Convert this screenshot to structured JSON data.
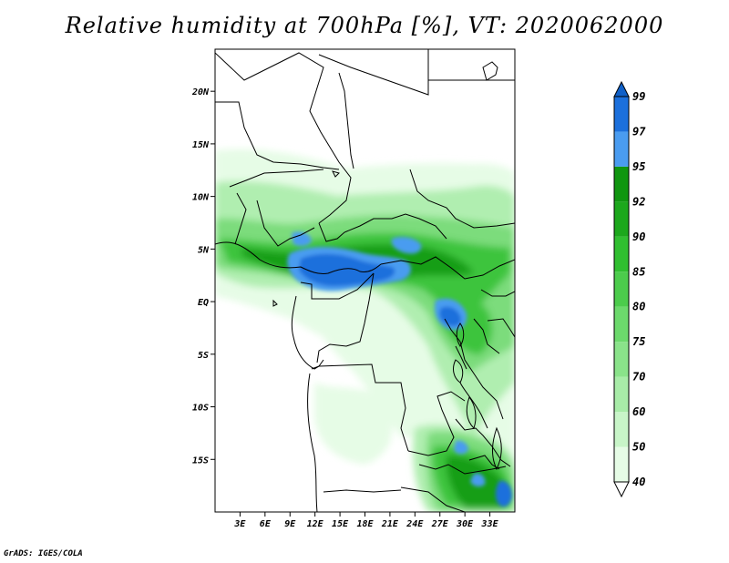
{
  "title": "Relative humidity at 700hPa [%], VT: 2020062000",
  "credit": "GrADS: IGES/COLA",
  "map": {
    "lon_range": [
      0,
      36
    ],
    "lat_range": [
      -20,
      24
    ],
    "lat_ticks": [
      {
        "value": 20,
        "label": "20N"
      },
      {
        "value": 15,
        "label": "15N"
      },
      {
        "value": 10,
        "label": "10N"
      },
      {
        "value": 5,
        "label": "5N"
      },
      {
        "value": 0,
        "label": "EQ"
      },
      {
        "value": -5,
        "label": "5S"
      },
      {
        "value": -10,
        "label": "10S"
      },
      {
        "value": -15,
        "label": "15S"
      }
    ],
    "lon_ticks": [
      {
        "value": 3,
        "label": "3E"
      },
      {
        "value": 6,
        "label": "6E"
      },
      {
        "value": 9,
        "label": "9E"
      },
      {
        "value": 12,
        "label": "12E"
      },
      {
        "value": 15,
        "label": "15E"
      },
      {
        "value": 18,
        "label": "18E"
      },
      {
        "value": 21,
        "label": "21E"
      },
      {
        "value": 24,
        "label": "24E"
      },
      {
        "value": 27,
        "label": "27E"
      },
      {
        "value": 30,
        "label": "30E"
      },
      {
        "value": 33,
        "label": "33E"
      }
    ]
  },
  "colorbar": {
    "levels": [
      "40",
      "50",
      "60",
      "70",
      "75",
      "80",
      "85",
      "90",
      "92",
      "95",
      "97",
      "99"
    ],
    "colors": [
      "#ffffff",
      "#e6fce6",
      "#c8f5c8",
      "#a8eca8",
      "#8ae38a",
      "#6cd96c",
      "#4ccc4c",
      "#30bf30",
      "#1ca81c",
      "#109610",
      "#4a9cf0",
      "#1c70dc",
      "#1060c8"
    ]
  }
}
